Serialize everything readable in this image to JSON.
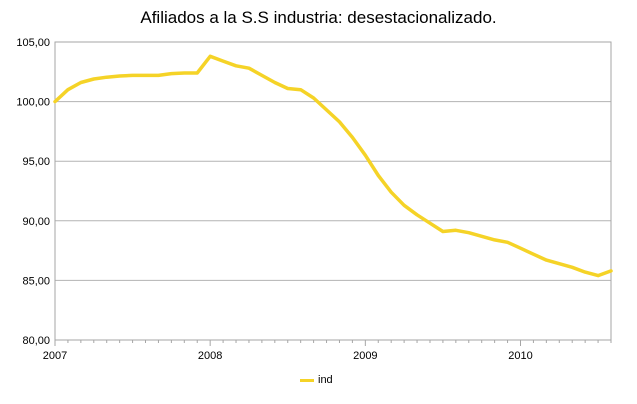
{
  "chart_data": {
    "type": "line",
    "title": "Afiliados a la S.S industria: desestacionalizado.",
    "xlabel": "",
    "ylabel": "",
    "ylim": [
      80,
      105
    ],
    "ytick_labels": [
      "80,00",
      "85,00",
      "90,00",
      "95,00",
      "100,00",
      "105,00"
    ],
    "x_tick_labels": [
      "2007",
      "2008",
      "2009",
      "2010"
    ],
    "x_range_years": [
      2007,
      2010.5833
    ],
    "grid": "horizontal",
    "legend_position": "bottom",
    "series": [
      {
        "name": "ind",
        "color": "#f5d327",
        "points": [
          [
            2007.0,
            100.0
          ],
          [
            2007.0833,
            101.0
          ],
          [
            2007.1667,
            101.6
          ],
          [
            2007.25,
            101.9
          ],
          [
            2007.3333,
            102.05
          ],
          [
            2007.4167,
            102.15
          ],
          [
            2007.5,
            102.2
          ],
          [
            2007.5833,
            102.2
          ],
          [
            2007.6667,
            102.2
          ],
          [
            2007.75,
            102.35
          ],
          [
            2007.8333,
            102.4
          ],
          [
            2007.9167,
            102.4
          ],
          [
            2008.0,
            103.8
          ],
          [
            2008.0833,
            103.4
          ],
          [
            2008.1667,
            103.0
          ],
          [
            2008.25,
            102.8
          ],
          [
            2008.3333,
            102.2
          ],
          [
            2008.4167,
            101.6
          ],
          [
            2008.5,
            101.1
          ],
          [
            2008.5833,
            101.0
          ],
          [
            2008.6667,
            100.3
          ],
          [
            2008.75,
            99.3
          ],
          [
            2008.8333,
            98.3
          ],
          [
            2008.9167,
            97.0
          ],
          [
            2009.0,
            95.5
          ],
          [
            2009.0833,
            93.8
          ],
          [
            2009.1667,
            92.4
          ],
          [
            2009.25,
            91.3
          ],
          [
            2009.3333,
            90.5
          ],
          [
            2009.4167,
            89.8
          ],
          [
            2009.5,
            89.1
          ],
          [
            2009.5833,
            89.2
          ],
          [
            2009.6667,
            89.0
          ],
          [
            2009.75,
            88.7
          ],
          [
            2009.8333,
            88.4
          ],
          [
            2009.9167,
            88.2
          ],
          [
            2010.0,
            87.7
          ],
          [
            2010.0833,
            87.2
          ],
          [
            2010.1667,
            86.7
          ],
          [
            2010.25,
            86.4
          ],
          [
            2010.3333,
            86.1
          ],
          [
            2010.4167,
            85.7
          ],
          [
            2010.5,
            85.4
          ],
          [
            2010.5833,
            85.8
          ]
        ]
      }
    ]
  }
}
